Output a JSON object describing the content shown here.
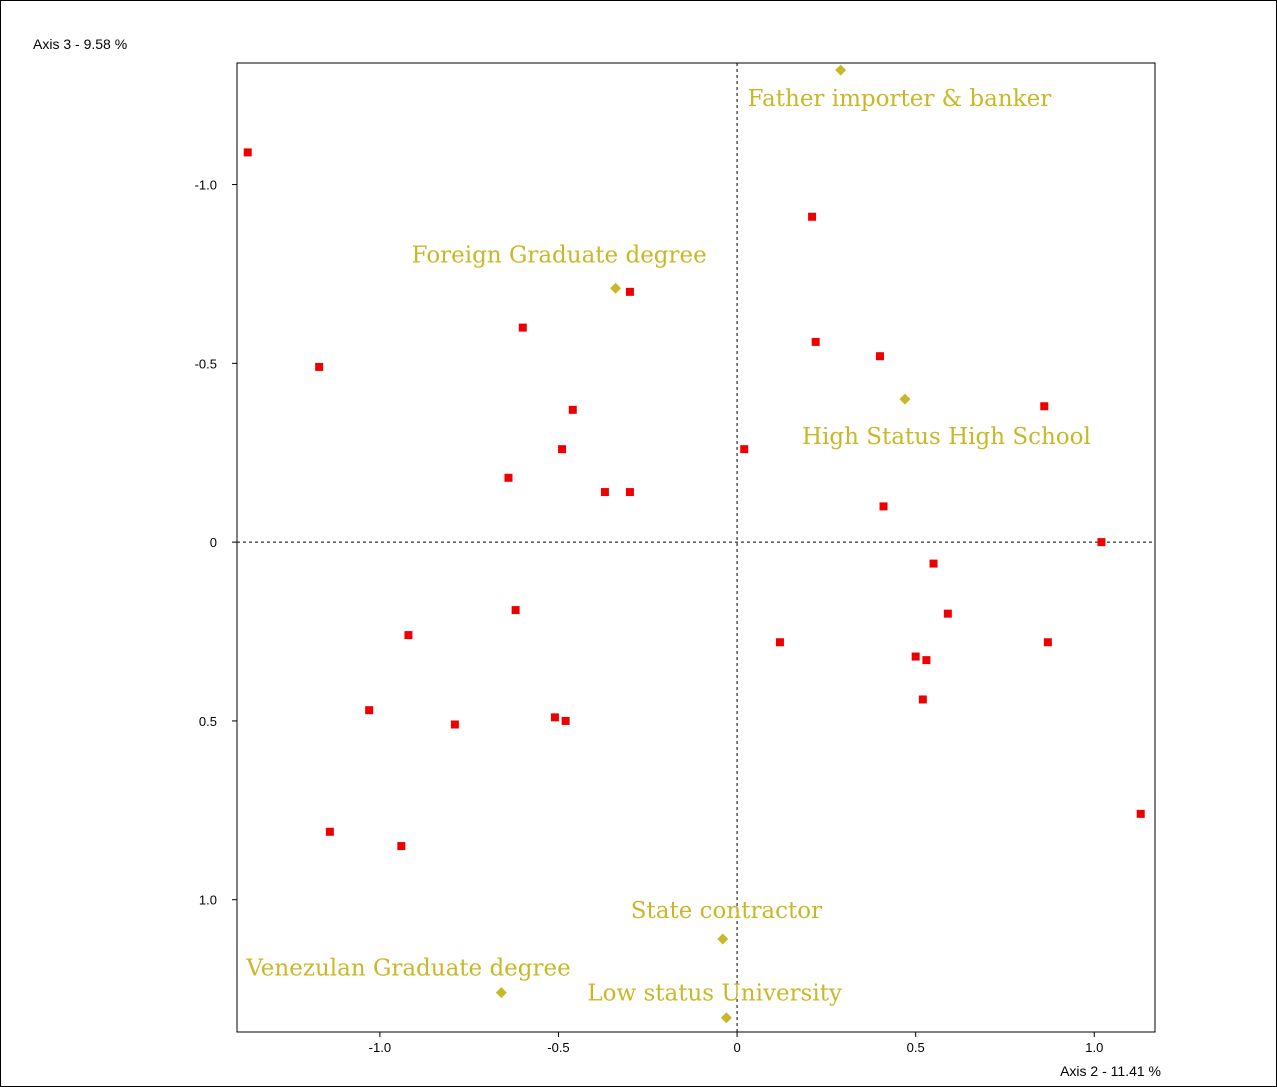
{
  "chart_data": {
    "type": "scatter",
    "xlabel": "Axis 2  -  11.41 %",
    "ylabel": "Axis 3  -  9.58 %",
    "xlim": [
      -1.4,
      1.17
    ],
    "ylim": [
      -1.34,
      1.37
    ],
    "y_inverted": true,
    "x_ticks": [
      {
        "value": -1.0,
        "label": "-1.0"
      },
      {
        "value": -0.5,
        "label": "-0.5"
      },
      {
        "value": 0,
        "label": "0"
      },
      {
        "value": 0.5,
        "label": "0.5"
      },
      {
        "value": 1.0,
        "label": "1.0"
      }
    ],
    "y_ticks": [
      {
        "value": -1.0,
        "label": "-1.0"
      },
      {
        "value": -0.5,
        "label": "-0.5"
      },
      {
        "value": 0,
        "label": "0"
      },
      {
        "value": 0.5,
        "label": "0.5"
      },
      {
        "value": 1.0,
        "label": "1.0"
      }
    ],
    "reference_lines": {
      "x": 0,
      "y": 0,
      "style": "dashed"
    },
    "grid": false,
    "series": [
      {
        "marker": "square",
        "color": "#ee0000",
        "points": [
          {
            "x": -1.37,
            "y": -1.09
          },
          {
            "x": -1.17,
            "y": -0.49
          },
          {
            "x": 0.21,
            "y": -0.91
          },
          {
            "x": -0.3,
            "y": -0.7
          },
          {
            "x": -0.6,
            "y": -0.6
          },
          {
            "x": 0.22,
            "y": -0.56
          },
          {
            "x": 0.4,
            "y": -0.52
          },
          {
            "x": -0.46,
            "y": -0.37
          },
          {
            "x": 0.86,
            "y": -0.38
          },
          {
            "x": -0.49,
            "y": -0.26
          },
          {
            "x": 0.02,
            "y": -0.26
          },
          {
            "x": -0.64,
            "y": -0.18
          },
          {
            "x": -0.37,
            "y": -0.14
          },
          {
            "x": -0.3,
            "y": -0.14
          },
          {
            "x": 0.41,
            "y": -0.1
          },
          {
            "x": 1.02,
            "y": 0.0
          },
          {
            "x": 0.55,
            "y": 0.06
          },
          {
            "x": -0.62,
            "y": 0.19
          },
          {
            "x": 0.59,
            "y": 0.2
          },
          {
            "x": -0.92,
            "y": 0.26
          },
          {
            "x": 0.12,
            "y": 0.28
          },
          {
            "x": 0.87,
            "y": 0.28
          },
          {
            "x": 0.5,
            "y": 0.32
          },
          {
            "x": 0.53,
            "y": 0.33
          },
          {
            "x": 0.52,
            "y": 0.44
          },
          {
            "x": -1.03,
            "y": 0.47
          },
          {
            "x": -0.51,
            "y": 0.49
          },
          {
            "x": -0.48,
            "y": 0.5
          },
          {
            "x": -0.79,
            "y": 0.51
          },
          {
            "x": 1.13,
            "y": 0.76
          },
          {
            "x": -1.14,
            "y": 0.81
          },
          {
            "x": -0.94,
            "y": 0.85
          }
        ]
      },
      {
        "marker": "diamond",
        "color": "#c8b828",
        "points": [
          {
            "x": 0.29,
            "y": -1.32,
            "label": "Father importer & banker"
          },
          {
            "x": -0.34,
            "y": -0.71,
            "label": "Foreign Graduate degree"
          },
          {
            "x": 0.47,
            "y": -0.4,
            "label": "High Status High School"
          },
          {
            "x": -0.04,
            "y": 1.11,
            "label": "State contractor"
          },
          {
            "x": -0.66,
            "y": 1.26,
            "label": "Venezulan Graduate degree"
          },
          {
            "x": -0.03,
            "y": 1.33,
            "label": "Low status University"
          }
        ]
      }
    ]
  }
}
